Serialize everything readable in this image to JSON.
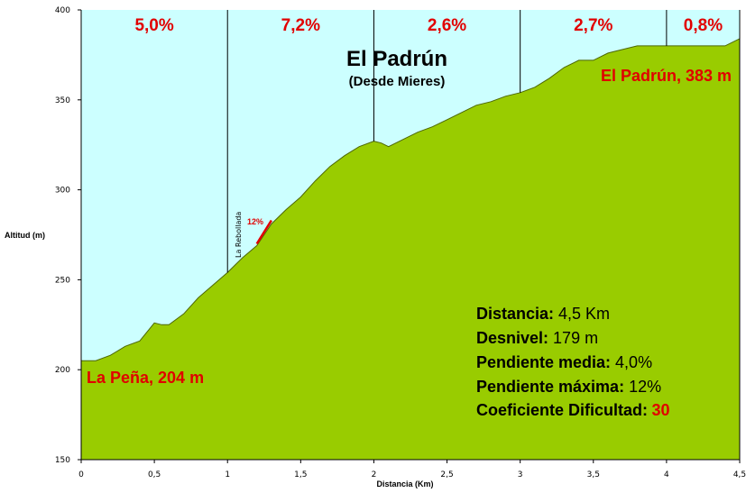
{
  "chart_data": {
    "type": "area",
    "title": "El Padrún",
    "subtitle": "(Desde Mieres)",
    "xlabel": "Distancia (Km)",
    "ylabel": "Altitud (m)",
    "xlim": [
      0,
      4.5
    ],
    "ylim": [
      150,
      400
    ],
    "x_ticks": [
      "0",
      "0,5",
      "1",
      "1,5",
      "2",
      "2,5",
      "3",
      "3,5",
      "4",
      "4,5"
    ],
    "y_ticks": [
      "150",
      "200",
      "250",
      "300",
      "350",
      "400"
    ],
    "grid": false,
    "colors": {
      "sky": "#ccffff",
      "terrain": "#99cc00",
      "accent": "#e10000"
    },
    "profile": {
      "x": [
        0,
        0.1,
        0.2,
        0.3,
        0.4,
        0.5,
        0.55,
        0.6,
        0.7,
        0.8,
        0.9,
        1.0,
        1.1,
        1.2,
        1.3,
        1.4,
        1.5,
        1.6,
        1.7,
        1.8,
        1.9,
        2.0,
        2.05,
        2.1,
        2.2,
        2.3,
        2.4,
        2.5,
        2.6,
        2.7,
        2.8,
        2.9,
        3.0,
        3.1,
        3.2,
        3.3,
        3.4,
        3.5,
        3.6,
        3.7,
        3.8,
        3.9,
        4.0,
        4.1,
        4.2,
        4.3,
        4.4,
        4.5
      ],
      "y": [
        205,
        205,
        208,
        213,
        216,
        226,
        225,
        225,
        231,
        240,
        247,
        254,
        262,
        269,
        281,
        289,
        296,
        305,
        313,
        319,
        324,
        327,
        326,
        324,
        328,
        332,
        335,
        339,
        343,
        347,
        349,
        352,
        354,
        357,
        362,
        368,
        372,
        372,
        376,
        378,
        380,
        380,
        380,
        380,
        380,
        380,
        380,
        384
      ]
    },
    "segments": [
      {
        "from": 0,
        "to": 1,
        "grade": "5,0%"
      },
      {
        "from": 1,
        "to": 2,
        "grade": "7,2%"
      },
      {
        "from": 2,
        "to": 3,
        "grade": "2,6%"
      },
      {
        "from": 3,
        "to": 4,
        "grade": "2,7%"
      },
      {
        "from": 4,
        "to": 4.5,
        "grade": "0,8%"
      }
    ],
    "steep_section": {
      "x": [
        1.2,
        1.3
      ],
      "y": [
        270,
        283
      ],
      "label": "12%"
    },
    "waypoint": {
      "x": 1.12,
      "label": "La Rebollada"
    },
    "start_label": "La Peña, 204 m",
    "end_label": "El Padrún, 383 m",
    "stats": [
      {
        "label": "Distancia:",
        "value": " 4,5 Km"
      },
      {
        "label": "Desnivel:",
        "value": " 179 m"
      },
      {
        "label": "Pendiente media:",
        "value": " 4,0%"
      },
      {
        "label": "Pendiente máxima:",
        "value": " 12%"
      },
      {
        "label": "Coeficiente Dificultad:",
        "value": "30"
      }
    ]
  }
}
